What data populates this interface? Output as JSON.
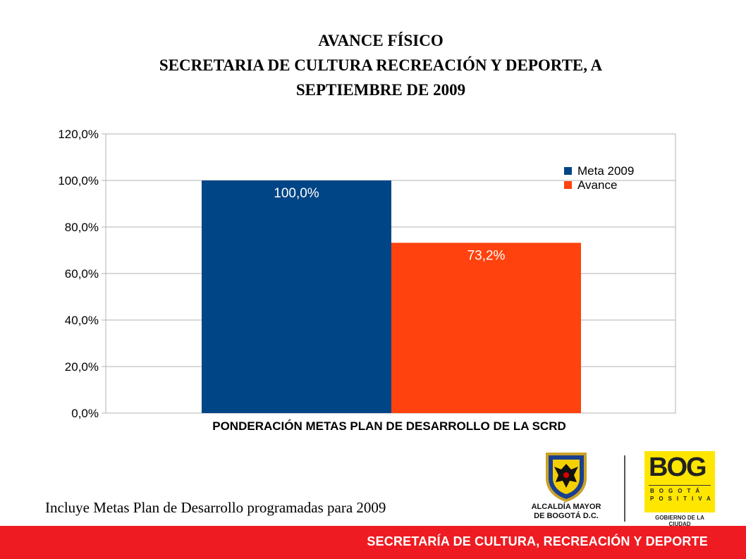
{
  "title": {
    "line1": "AVANCE FÍSICO",
    "line2": "SECRETARIA DE CULTURA RECREACIÓN Y DEPORTE,  A",
    "line3": "SEPTIEMBRE  DE 2009"
  },
  "chart_data": {
    "type": "bar",
    "categories": [
      "PONDERACIÓN METAS PLAN DE DESARROLLO DE LA SCRD"
    ],
    "series": [
      {
        "name": "Meta 2009",
        "values": [
          100.0
        ],
        "data_label": "100,0%",
        "color": "#004586"
      },
      {
        "name": "Avance",
        "values": [
          73.2
        ],
        "data_label": "73,2%",
        "color": "#ff420e"
      }
    ],
    "ylim": [
      0,
      120
    ],
    "y_ticks": [
      0,
      20,
      40,
      60,
      80,
      100,
      120
    ],
    "y_tick_labels": [
      "0,0%",
      "20,0%",
      "40,0%",
      "60,0%",
      "80,0%",
      "100,0%",
      "120,0%"
    ],
    "grid": true,
    "legend_position": "top-right",
    "xlabel": "PONDERACIÓN METAS PLAN DE DESARROLLO DE LA SCRD"
  },
  "note": "Incluye Metas Plan de Desarrollo programadas para 2009",
  "logos": {
    "alcaldia_line1": "ALCALDÍA MAYOR",
    "alcaldia_line2": "DE BOGOTÁ D.C.",
    "bog_word": "BOG",
    "bog_sub1": "BOGOTÁ",
    "bog_sub2": "POSITIVA",
    "bog_tag": "GOBIERNO DE LA CIUDAD"
  },
  "footer": "SECRETARÍA DE CULTURA, RECREACIÓN Y DEPORTE",
  "colors": {
    "footer": "#ee1c22",
    "meta": "#004586",
    "avance": "#ff420e",
    "bog_yellow": "#ffe600"
  }
}
